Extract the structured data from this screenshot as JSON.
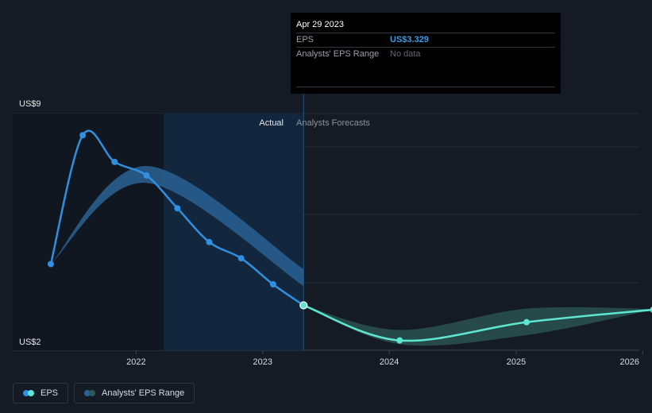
{
  "tooltip": {
    "date": "Apr 29 2023",
    "eps_label": "EPS",
    "eps_value": "US$3.329",
    "range_label": "Analysts' EPS Range",
    "range_value": "No data"
  },
  "legend": {
    "eps_label": "EPS",
    "range_label": "Analysts' EPS Range"
  },
  "colors": {
    "background": "#151b24",
    "eps_line": "#2f8fe0",
    "forecast_line": "#5ee6d0",
    "forecast_band": "#2c5a57",
    "history_band": "#2a6294",
    "actual_region": "#12273d"
  },
  "chart_data": {
    "type": "line",
    "y_top_label": "US$9",
    "y_bottom_label": "US$2",
    "ylim": [
      2,
      9
    ],
    "xlim": [
      "2021-01-01",
      "2026-01-01"
    ],
    "x_ticks": [
      "2022",
      "2023",
      "2024",
      "2025",
      "2026"
    ],
    "actual_label": "Actual",
    "forecast_label": "Analysts Forecasts",
    "cursor_date": "2023-04-29",
    "grid": true,
    "series": [
      {
        "key": "eps_actual",
        "x": [
          "2021-04-30",
          "2021-07-31",
          "2021-10-31",
          "2022-01-31",
          "2022-04-30",
          "2022-07-31",
          "2022-10-31",
          "2023-01-31",
          "2023-04-29"
        ],
        "values": [
          4.55,
          8.36,
          7.57,
          7.17,
          6.2,
          5.2,
          4.72,
          3.95,
          3.329
        ]
      },
      {
        "key": "eps_forecast",
        "x": [
          "2023-04-29",
          "2024-01-31",
          "2025-01-31",
          "2026-01-31"
        ],
        "values": [
          3.329,
          2.29,
          2.83,
          3.2
        ]
      }
    ],
    "analyst_range_history": {
      "x": [
        "2021-04-30",
        "2022-01-31",
        "2023-04-29"
      ],
      "low": [
        4.55,
        6.95,
        3.9
      ],
      "high": [
        4.55,
        7.45,
        4.4
      ]
    },
    "analyst_range_forecast": {
      "x": [
        "2023-04-29",
        "2024-01-31",
        "2025-01-31",
        "2026-01-31"
      ],
      "low": [
        3.329,
        2.18,
        2.45,
        3.2
      ],
      "high": [
        3.329,
        2.6,
        3.23,
        3.22
      ]
    }
  }
}
